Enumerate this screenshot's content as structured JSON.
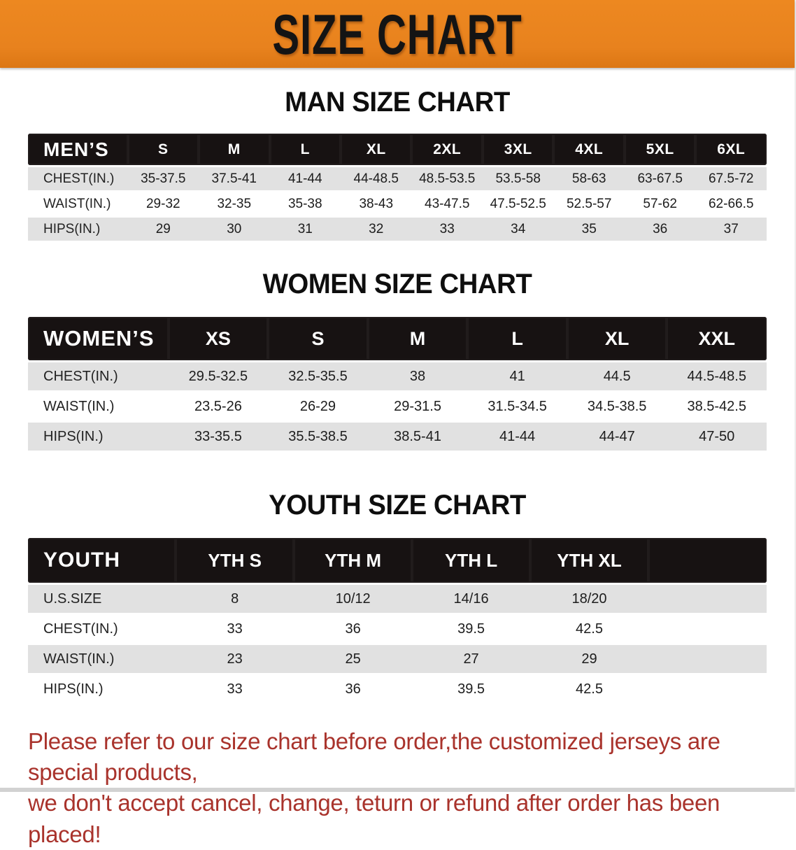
{
  "banner": {
    "title": "SIZE CHART"
  },
  "colors": {
    "banner_bg": "#E8821E",
    "table_header_bg": "#171212",
    "row_alt_bg": "#E1E1E1",
    "disclaimer_text": "#A9332C"
  },
  "sections": {
    "men": {
      "heading": "MAN SIZE CHART",
      "table": {
        "label": "MEN’S",
        "columns": [
          "S",
          "M",
          "L",
          "XL",
          "2XL",
          "3XL",
          "4XL",
          "5XL",
          "6XL"
        ],
        "rows": [
          {
            "label": "CHEST(IN.)",
            "values": [
              "35-37.5",
              "37.5-41",
              "41-44",
              "44-48.5",
              "48.5-53.5",
              "53.5-58",
              "58-63",
              "63-67.5",
              "67.5-72"
            ]
          },
          {
            "label": "WAIST(IN.)",
            "values": [
              "29-32",
              "32-35",
              "35-38",
              "38-43",
              "43-47.5",
              "47.5-52.5",
              "52.5-57",
              "57-62",
              "62-66.5"
            ]
          },
          {
            "label": "HIPS(IN.)",
            "values": [
              "29",
              "30",
              "31",
              "32",
              "33",
              "34",
              "35",
              "36",
              "37"
            ]
          }
        ]
      }
    },
    "women": {
      "heading": "WOMEN SIZE CHART",
      "table": {
        "label": "WOMEN’S",
        "columns": [
          "XS",
          "S",
          "M",
          "L",
          "XL",
          "XXL"
        ],
        "rows": [
          {
            "label": "CHEST(IN.)",
            "values": [
              "29.5-32.5",
              "32.5-35.5",
              "38",
              "41",
              "44.5",
              "44.5-48.5"
            ]
          },
          {
            "label": "WAIST(IN.)",
            "values": [
              "23.5-26",
              "26-29",
              "29-31.5",
              "31.5-34.5",
              "34.5-38.5",
              "38.5-42.5"
            ]
          },
          {
            "label": "HIPS(IN.)",
            "values": [
              "33-35.5",
              "35.5-38.5",
              "38.5-41",
              "41-44",
              "44-47",
              "47-50"
            ]
          }
        ]
      }
    },
    "youth": {
      "heading": "YOUTH SIZE CHART",
      "table": {
        "label": "YOUTH",
        "columns": [
          "YTH S",
          "YTH M",
          "YTH L",
          "YTH XL",
          ""
        ],
        "rows": [
          {
            "label": "U.S.SIZE",
            "values": [
              "8",
              "10/12",
              "14/16",
              "18/20",
              ""
            ]
          },
          {
            "label": "CHEST(IN.)",
            "values": [
              "33",
              "36",
              "39.5",
              "42.5",
              ""
            ]
          },
          {
            "label": "WAIST(IN.)",
            "values": [
              "23",
              "25",
              "27",
              "29",
              ""
            ]
          },
          {
            "label": "HIPS(IN.)",
            "values": [
              "33",
              "36",
              "39.5",
              "42.5",
              ""
            ]
          }
        ]
      }
    }
  },
  "disclaimer": {
    "line1": "Please refer to our size chart before order,the customized jerseys are special products,",
    "line2": "we don't accept cancel, change, teturn or refund after order has been placed!"
  }
}
